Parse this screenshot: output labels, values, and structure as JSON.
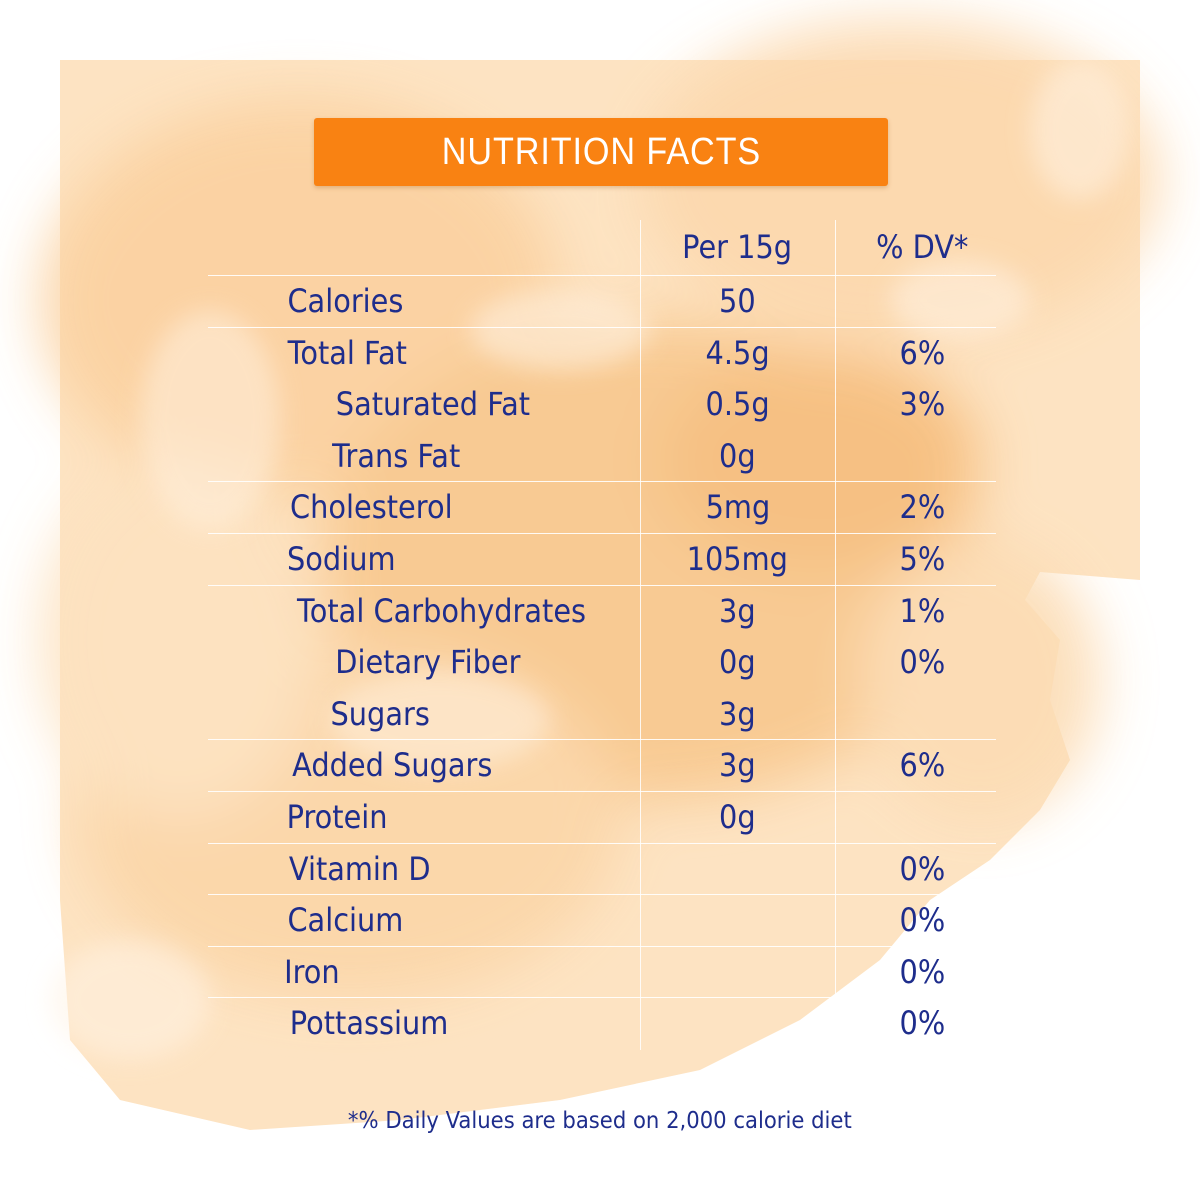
{
  "title": "NUTRITION FACTS",
  "header": {
    "amount": "Per 15g",
    "dv": "% DV*"
  },
  "rows": [
    {
      "name": "Calories",
      "amount": "50",
      "dv": "",
      "indent": false,
      "divider": true
    },
    {
      "name": "Total Fat",
      "amount": "4.5g",
      "dv": "6%",
      "indent": false,
      "divider": false
    },
    {
      "name": "Saturated Fat",
      "amount": "0.5g",
      "dv": "3%",
      "indent": true,
      "divider": false
    },
    {
      "name": "Trans Fat",
      "amount": "0g",
      "dv": "",
      "indent": true,
      "divider": true
    },
    {
      "name": "Cholesterol",
      "amount": "5mg",
      "dv": "2%",
      "indent": false,
      "divider": true
    },
    {
      "name": "Sodium",
      "amount": "105mg",
      "dv": "5%",
      "indent": false,
      "divider": true
    },
    {
      "name": "Total Carbohydrates",
      "amount": "3g",
      "dv": "1%",
      "indent": false,
      "divider": false
    },
    {
      "name": "Dietary Fiber",
      "amount": "0g",
      "dv": "0%",
      "indent": true,
      "divider": false
    },
    {
      "name": "Sugars",
      "amount": "3g",
      "dv": "",
      "indent": true,
      "divider": true
    },
    {
      "name": "Added Sugars",
      "amount": "3g",
      "dv": "6%",
      "indent": false,
      "divider": true
    },
    {
      "name": "Protein",
      "amount": "0g",
      "dv": "",
      "indent": false,
      "divider": true
    },
    {
      "name": "Vitamin D",
      "amount": "",
      "dv": "0%",
      "indent": false,
      "divider": true
    },
    {
      "name": "Calcium",
      "amount": "",
      "dv": "0%",
      "indent": false,
      "divider": true
    },
    {
      "name": "Iron",
      "amount": "",
      "dv": "0%",
      "indent": false,
      "divider": true
    },
    {
      "name": "Pottassium",
      "amount": "",
      "dv": "0%",
      "indent": false,
      "divider": false
    }
  ],
  "footnote": "*% Daily Values are based on 2,000 calorie diet",
  "colors": {
    "title_bar": "#f98212",
    "text": "#1e2d8c",
    "wash": "#fbd6a6"
  }
}
